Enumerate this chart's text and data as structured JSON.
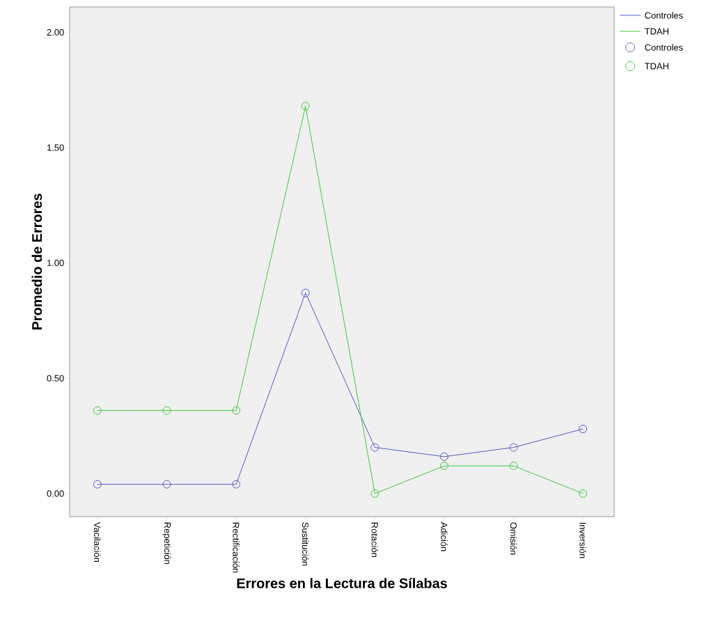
{
  "chart_data": {
    "type": "line",
    "xlabel": "Errores en la Lectura de Sílabas",
    "ylabel": "Promedio de Errores",
    "categories": [
      "Vacilación",
      "Repetición",
      "Rectificación",
      "Sustitución",
      "Rotación",
      "Adición",
      "Omisión",
      "Inversión"
    ],
    "series": [
      {
        "name": "Controles",
        "color": "#5558c8",
        "values": [
          0.04,
          0.04,
          0.04,
          0.87,
          0.2,
          0.16,
          0.2,
          0.28
        ]
      },
      {
        "name": "TDAH",
        "color": "#3cc83c",
        "values": [
          0.36,
          0.36,
          0.36,
          1.68,
          0.0,
          0.12,
          0.12,
          0.0
        ]
      }
    ],
    "ylim": [
      -0.1,
      2.11
    ],
    "yticks": [
      {
        "value": 0,
        "label": "0.00"
      },
      {
        "value": 0.5,
        "label": "0.50"
      },
      {
        "value": 1,
        "label": "1.00"
      },
      {
        "value": 1.5,
        "label": "1.50"
      },
      {
        "value": 2,
        "label": "2.00"
      }
    ],
    "marker": "circle",
    "line_style": "solid",
    "grid": false,
    "legend": "top right"
  }
}
